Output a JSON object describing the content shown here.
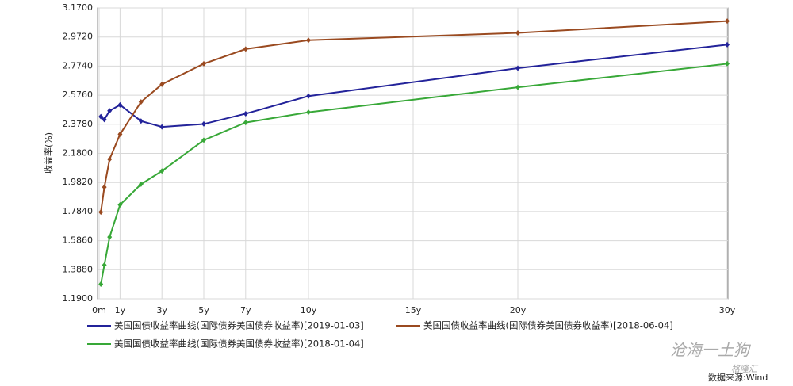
{
  "chart_data": {
    "type": "line",
    "y_label": "收益率(%)",
    "x": [
      0.083,
      0.25,
      0.5,
      1,
      2,
      3,
      5,
      7,
      10,
      20,
      30
    ],
    "xlim": [
      0,
      30
    ],
    "xticks": [
      {
        "value": 0,
        "label": "0m"
      },
      {
        "value": 1,
        "label": "1y"
      },
      {
        "value": 3,
        "label": "3y"
      },
      {
        "value": 5,
        "label": "5y"
      },
      {
        "value": 7,
        "label": "7y"
      },
      {
        "value": 10,
        "label": "10y"
      },
      {
        "value": 15,
        "label": "15y"
      },
      {
        "value": 20,
        "label": "20y"
      },
      {
        "value": 30,
        "label": "30y"
      }
    ],
    "ylim": [
      1.19,
      3.17
    ],
    "yticks": [
      {
        "value": 1.19,
        "label": "1.1900"
      },
      {
        "value": 1.388,
        "label": "1.3880"
      },
      {
        "value": 1.586,
        "label": "1.5860"
      },
      {
        "value": 1.784,
        "label": "1.7840"
      },
      {
        "value": 1.982,
        "label": "1.9820"
      },
      {
        "value": 2.18,
        "label": "2.1800"
      },
      {
        "value": 2.378,
        "label": "2.3780"
      },
      {
        "value": 2.576,
        "label": "2.5760"
      },
      {
        "value": 2.774,
        "label": "2.7740"
      },
      {
        "value": 2.972,
        "label": "2.9720"
      },
      {
        "value": 3.17,
        "label": "3.1700"
      }
    ],
    "grid": true,
    "series": [
      {
        "name": "美国国债收益率曲线(国际债券美国债券收益率)[2019-01-03]",
        "color": "#23239a",
        "values": [
          2.43,
          2.41,
          2.47,
          2.51,
          2.4,
          2.36,
          2.38,
          2.45,
          2.57,
          2.76,
          2.92
        ]
      },
      {
        "name": "美国国债收益率曲线(国际债券美国债券收益率)[2018-06-04]",
        "color": "#9a4a20",
        "values": [
          1.78,
          1.95,
          2.14,
          2.31,
          2.53,
          2.65,
          2.79,
          2.89,
          2.95,
          3.0,
          3.08
        ]
      },
      {
        "name": "美国国债收益率曲线(国际债券美国债券收益率)[2018-01-04]",
        "color": "#38a838",
        "values": [
          1.29,
          1.42,
          1.61,
          1.83,
          1.97,
          2.06,
          2.27,
          2.39,
          2.46,
          2.63,
          2.79
        ]
      }
    ],
    "source": "数据来源:Wind",
    "watermarks": [
      "沧海一土狗",
      "格隆汇"
    ]
  }
}
